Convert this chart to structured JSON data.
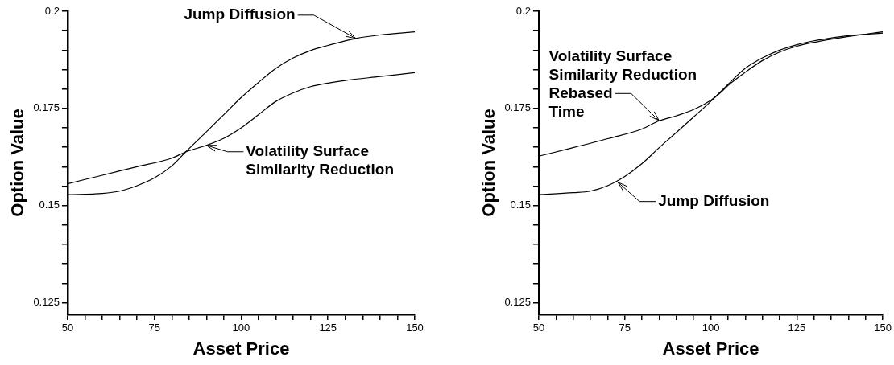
{
  "chart_data": [
    {
      "type": "line",
      "xlabel": "Asset Price",
      "ylabel": "Option Value",
      "xlim": [
        50,
        150
      ],
      "ylim": [
        0.122,
        0.2
      ],
      "xticks": [
        50,
        {
          "value": 55,
          "label": null
        },
        {
          "value": 60,
          "label": null
        },
        {
          "value": 65,
          "label": null
        },
        {
          "value": 70,
          "label": null
        },
        75,
        {
          "value": 80,
          "label": null
        },
        {
          "value": 85,
          "label": null
        },
        {
          "value": 90,
          "label": null
        },
        {
          "value": 95,
          "label": null
        },
        100,
        {
          "value": 105,
          "label": null
        },
        {
          "value": 110,
          "label": null
        },
        {
          "value": 115,
          "label": null
        },
        {
          "value": 120,
          "label": null
        },
        125,
        {
          "value": 130,
          "label": null
        },
        {
          "value": 135,
          "label": null
        },
        {
          "value": 140,
          "label": null
        },
        {
          "value": 145,
          "label": null
        },
        150
      ],
      "yticks": [
        0.125,
        {
          "value": 0.13,
          "label": null
        },
        {
          "value": 0.135,
          "label": null
        },
        {
          "value": 0.14,
          "label": null
        },
        {
          "value": 0.145,
          "label": null
        },
        0.15,
        {
          "value": 0.155,
          "label": null
        },
        {
          "value": 0.16,
          "label": null
        },
        {
          "value": 0.165,
          "label": null
        },
        {
          "value": 0.17,
          "label": null
        },
        0.175,
        {
          "value": 0.18,
          "label": null
        },
        {
          "value": 0.185,
          "label": null
        },
        {
          "value": 0.19,
          "label": null
        },
        {
          "value": 0.195,
          "label": null
        },
        0.2
      ],
      "grid": false,
      "marker": "none",
      "line_style": "solid",
      "series": [
        {
          "color": "#000000",
          "x": [
            50,
            60,
            65,
            70,
            75,
            80,
            84,
            90,
            95,
            100,
            105,
            110,
            115,
            120,
            125,
            133,
            140,
            150
          ],
          "values": [
            0.1528,
            0.1531,
            0.1537,
            0.1551,
            0.1571,
            0.1602,
            0.1638,
            0.169,
            0.1734,
            0.1778,
            0.1817,
            0.1853,
            0.188,
            0.1899,
            0.1912,
            0.193,
            0.1939,
            0.1947
          ]
        },
        {
          "color": "#000000",
          "x": [
            50,
            60,
            70,
            80,
            84,
            90,
            95,
            100,
            105,
            110,
            115,
            120,
            125,
            130,
            140,
            150
          ],
          "values": [
            0.1556,
            0.1578,
            0.16,
            0.1622,
            0.1638,
            0.1655,
            0.1673,
            0.17,
            0.1734,
            0.1768,
            0.179,
            0.1806,
            0.1815,
            0.1822,
            0.1832,
            0.1842
          ]
        }
      ],
      "annotations": [
        {
          "text": "Jump Diffusion",
          "x": 133,
          "y": 0.193
        },
        {
          "text": "Volatility Surface\nSimilarity Reduction",
          "x": 90,
          "y": 0.1655
        }
      ]
    },
    {
      "type": "line",
      "xlabel": "Asset Price",
      "ylabel": "Option Value",
      "xlim": [
        50,
        150
      ],
      "ylim": [
        0.122,
        0.2
      ],
      "xticks": [
        50,
        {
          "value": 55,
          "label": null
        },
        {
          "value": 60,
          "label": null
        },
        {
          "value": 65,
          "label": null
        },
        {
          "value": 70,
          "label": null
        },
        75,
        {
          "value": 80,
          "label": null
        },
        {
          "value": 85,
          "label": null
        },
        {
          "value": 90,
          "label": null
        },
        {
          "value": 95,
          "label": null
        },
        100,
        {
          "value": 105,
          "label": null
        },
        {
          "value": 110,
          "label": null
        },
        {
          "value": 115,
          "label": null
        },
        {
          "value": 120,
          "label": null
        },
        125,
        {
          "value": 130,
          "label": null
        },
        {
          "value": 135,
          "label": null
        },
        {
          "value": 140,
          "label": null
        },
        {
          "value": 145,
          "label": null
        },
        150
      ],
      "yticks": [
        0.125,
        {
          "value": 0.13,
          "label": null
        },
        {
          "value": 0.135,
          "label": null
        },
        {
          "value": 0.14,
          "label": null
        },
        {
          "value": 0.145,
          "label": null
        },
        0.15,
        {
          "value": 0.155,
          "label": null
        },
        {
          "value": 0.16,
          "label": null
        },
        {
          "value": 0.165,
          "label": null
        },
        {
          "value": 0.17,
          "label": null
        },
        0.175,
        {
          "value": 0.18,
          "label": null
        },
        {
          "value": 0.185,
          "label": null
        },
        {
          "value": 0.19,
          "label": null
        },
        {
          "value": 0.195,
          "label": null
        },
        0.2
      ],
      "grid": false,
      "marker": "none",
      "line_style": "solid",
      "series": [
        {
          "color": "#000000",
          "x": [
            50,
            60,
            65,
            70,
            75,
            80,
            85,
            90,
            95,
            100,
            105,
            110,
            115,
            120,
            125,
            130,
            140,
            150
          ],
          "values": [
            0.1528,
            0.1533,
            0.1537,
            0.1551,
            0.1575,
            0.1608,
            0.1649,
            0.1688,
            0.1728,
            0.1768,
            0.1812,
            0.1853,
            0.188,
            0.19,
            0.1914,
            0.1924,
            0.1937,
            0.1944
          ]
        },
        {
          "color": "#000000",
          "x": [
            50,
            60,
            70,
            80,
            85,
            90,
            95,
            100,
            103,
            105,
            110,
            115,
            120,
            125,
            130,
            140,
            150
          ],
          "values": [
            0.1627,
            0.1649,
            0.1672,
            0.1697,
            0.1718,
            0.1731,
            0.1747,
            0.1771,
            0.1792,
            0.1809,
            0.1843,
            0.1873,
            0.1895,
            0.191,
            0.192,
            0.1935,
            0.1947
          ]
        }
      ],
      "annotations": [
        {
          "text": "Volatility Surface\nSimilarity Reduction\nRebased\nTime",
          "x": 85,
          "y": 0.1718
        },
        {
          "text": "Jump Diffusion",
          "x": 73,
          "y": 0.156
        }
      ]
    }
  ]
}
